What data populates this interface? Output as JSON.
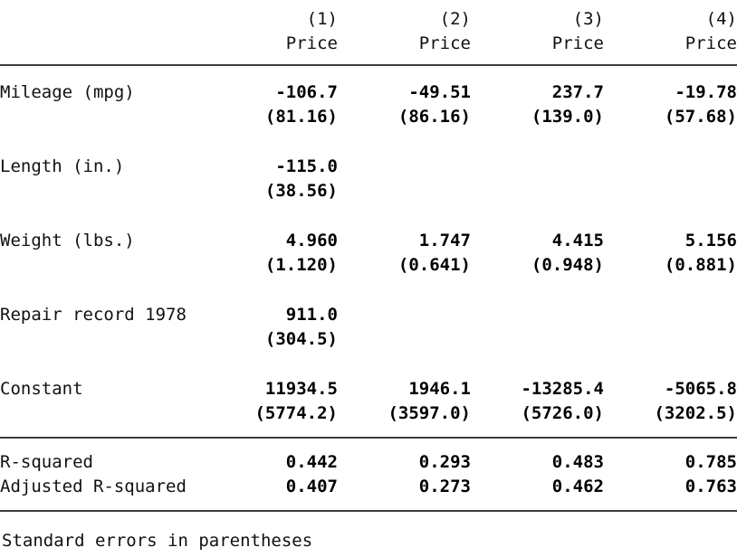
{
  "table": {
    "columns": [
      "(1)",
      "(2)",
      "(3)",
      "(4)"
    ],
    "dep_var": "Price",
    "rows": [
      {
        "label": "Mileage (mpg)",
        "coefs": [
          "-106.7",
          "-49.51",
          "237.7",
          "-19.78"
        ],
        "ses": [
          "(81.16)",
          "(86.16)",
          "(139.0)",
          "(57.68)"
        ]
      },
      {
        "label": "Length (in.)",
        "coefs": [
          "-115.0",
          "",
          "",
          ""
        ],
        "ses": [
          "(38.56)",
          "",
          "",
          ""
        ]
      },
      {
        "label": "Weight (lbs.)",
        "coefs": [
          "4.960",
          "1.747",
          "4.415",
          "5.156"
        ],
        "ses": [
          "(1.120)",
          "(0.641)",
          "(0.948)",
          "(0.881)"
        ]
      },
      {
        "label": "Repair record 1978",
        "coefs": [
          "911.0",
          "",
          "",
          ""
        ],
        "ses": [
          "(304.5)",
          "",
          "",
          ""
        ]
      },
      {
        "label": "Constant",
        "coefs": [
          "11934.5",
          "1946.1",
          "-13285.4",
          "-5065.8"
        ],
        "ses": [
          "(5774.2)",
          "(3597.0)",
          "(5726.0)",
          "(3202.5)"
        ]
      }
    ],
    "stats": [
      {
        "label": "R-squared",
        "values": [
          "0.442",
          "0.293",
          "0.483",
          "0.785"
        ]
      },
      {
        "label": "Adjusted R-squared",
        "values": [
          "0.407",
          "0.273",
          "0.462",
          "0.763"
        ]
      }
    ],
    "note": "Standard errors in parentheses"
  },
  "colors": {
    "background": "#ffffff",
    "text": "#111111",
    "rule": "#3d3d3d"
  }
}
